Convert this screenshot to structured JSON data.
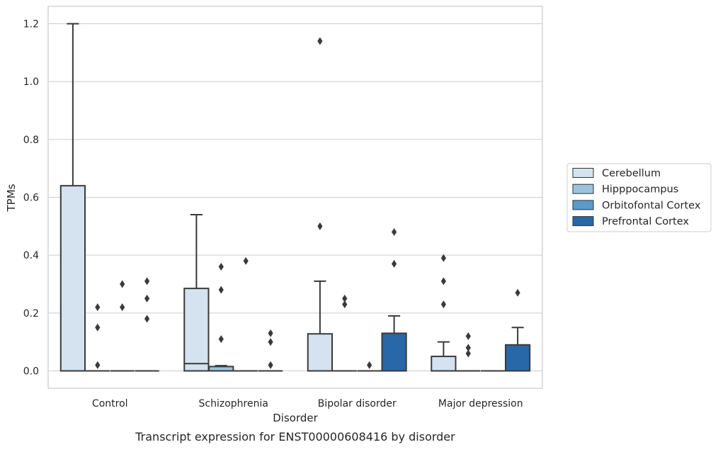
{
  "chart_data": {
    "type": "box",
    "xlabel": "Disorder",
    "ylabel": "TPMs",
    "caption": "Transcript expression for ENST00000608416 by disorder",
    "categories": [
      "Control",
      "Schizophrenia",
      "Bipolar disorder",
      "Major depression"
    ],
    "ylim": [
      -0.06,
      1.26
    ],
    "yticks": [
      "0.0",
      "0.2",
      "0.4",
      "0.6",
      "0.8",
      "1.0",
      "1.2"
    ],
    "grid": "horizontal",
    "legend_position": "right",
    "series": [
      {
        "name": "Cerebellum",
        "color": "#d5e3f0",
        "boxes": [
          {
            "q1": 0,
            "median": 0,
            "q3": 0.64,
            "whisker_low": 0,
            "whisker_high": 1.2,
            "outliers": []
          },
          {
            "q1": 0,
            "median": 0.025,
            "q3": 0.285,
            "whisker_low": 0,
            "whisker_high": 0.54,
            "outliers": []
          },
          {
            "q1": 0,
            "median": 0,
            "q3": 0.128,
            "whisker_low": 0,
            "whisker_high": 0.31,
            "outliers": [
              0.5,
              1.14
            ]
          },
          {
            "q1": 0,
            "median": 0,
            "q3": 0.05,
            "whisker_low": 0,
            "whisker_high": 0.1,
            "outliers": [
              0.23,
              0.31,
              0.39
            ]
          }
        ]
      },
      {
        "name": "Hipppocampus",
        "color": "#9cc3de",
        "boxes": [
          {
            "q1": 0,
            "median": 0,
            "q3": 0,
            "whisker_low": 0,
            "whisker_high": 0,
            "outliers": [
              0.02,
              0.15,
              0.22
            ]
          },
          {
            "q1": 0,
            "median": 0,
            "q3": 0.015,
            "whisker_low": 0,
            "whisker_high": 0.018,
            "outliers": [
              0.11,
              0.28,
              0.36
            ]
          },
          {
            "q1": 0,
            "median": 0,
            "q3": 0,
            "whisker_low": 0,
            "whisker_high": 0,
            "outliers": [
              0.23,
              0.25
            ]
          },
          {
            "q1": 0,
            "median": 0,
            "q3": 0,
            "whisker_low": 0,
            "whisker_high": 0,
            "outliers": [
              0.06,
              0.08,
              0.12
            ]
          }
        ]
      },
      {
        "name": "Orbitofontal Cortex",
        "color": "#5d9ac9",
        "boxes": [
          {
            "q1": 0,
            "median": 0,
            "q3": 0,
            "whisker_low": 0,
            "whisker_high": 0,
            "outliers": [
              0.22,
              0.3
            ]
          },
          {
            "q1": 0,
            "median": 0,
            "q3": 0,
            "whisker_low": 0,
            "whisker_high": 0,
            "outliers": [
              0.38
            ]
          },
          {
            "q1": 0,
            "median": 0,
            "q3": 0,
            "whisker_low": 0,
            "whisker_high": 0,
            "outliers": [
              0.02
            ]
          },
          {
            "q1": 0,
            "median": 0,
            "q3": 0,
            "whisker_low": 0,
            "whisker_high": 0,
            "outliers": []
          }
        ]
      },
      {
        "name": "Prefrontal Cortex",
        "color": "#2867a8",
        "boxes": [
          {
            "q1": 0,
            "median": 0,
            "q3": 0,
            "whisker_low": 0,
            "whisker_high": 0,
            "outliers": [
              0.18,
              0.25,
              0.31
            ]
          },
          {
            "q1": 0,
            "median": 0,
            "q3": 0,
            "whisker_low": 0,
            "whisker_high": 0,
            "outliers": [
              0.02,
              0.1,
              0.13
            ]
          },
          {
            "q1": 0,
            "median": 0,
            "q3": 0.13,
            "whisker_low": 0,
            "whisker_high": 0.19,
            "outliers": [
              0.37,
              0.48
            ]
          },
          {
            "q1": 0,
            "median": 0,
            "q3": 0.09,
            "whisker_low": 0,
            "whisker_high": 0.15,
            "outliers": [
              0.27
            ]
          }
        ]
      }
    ]
  }
}
